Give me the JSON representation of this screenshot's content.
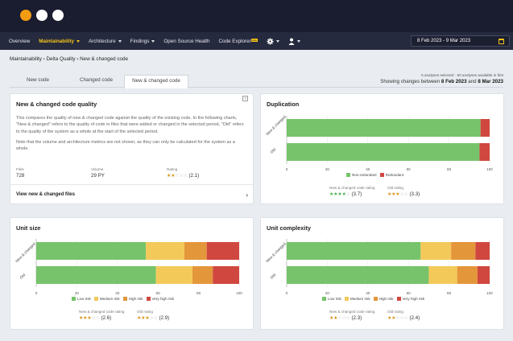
{
  "nav": {
    "items": [
      "Overview",
      "Maintainability",
      "Architecture",
      "Findings",
      "Open Source Health",
      "Code Explorer"
    ],
    "code_explorer_badge": "beta",
    "date_range": "8 Feb 2023 - 9 Mar 2023"
  },
  "breadcrumb": "Maintainability › Delta Quality › New & changed code",
  "tabs": [
    "New code",
    "Changed code",
    "New & changed code"
  ],
  "selection": {
    "line1": "5 analyses selected  ·  60 analyses available in first",
    "prefix": "Showing changes between ",
    "from": "8 Feb 2023",
    "and": " and ",
    "to": "8 Mar 2023"
  },
  "quality": {
    "title": "New & changed code quality",
    "help": "?",
    "p1": "This compares the quality of new & changed code against the quality of the existing code. In the following charts, \"New & changed\" refers to the quality of code in files that were added or changed in the selected period, \"Old\" refers to the quality of the system as a whole at the start of the selected period.",
    "p2": "Note that the volume and architecture metrics are not shown, as they can only be calculated for the system as a whole.",
    "files_label": "Files",
    "files_value": "728",
    "volume_label": "Volume",
    "volume_value": "29 PY",
    "rating_label": "Rating",
    "rating_value": "(2.1)",
    "rating_stars": 2,
    "link": "View new & changed files"
  },
  "row_labels": [
    "New & changed",
    "Old"
  ],
  "duplication": {
    "title": "Duplication",
    "legend": [
      {
        "name": "Non-redundant",
        "color": "#76c36b"
      },
      {
        "name": "Redundant",
        "color": "#d0473f"
      }
    ],
    "new_rating_label": "New & changed code rating",
    "new_rating_value": "(3.7)",
    "new_stars": 4,
    "new_star_color": "green",
    "old_rating_label": "Old rating",
    "old_rating_value": "(3.3)",
    "old_stars": 3
  },
  "unit_size": {
    "title": "Unit size",
    "legend": [
      {
        "name": "Low risk",
        "color": "#76c36b"
      },
      {
        "name": "Medium risk",
        "color": "#f3c95a"
      },
      {
        "name": "High risk",
        "color": "#e4963a"
      },
      {
        "name": "Very high risk",
        "color": "#d0473f"
      }
    ],
    "new_rating_label": "New & changed code rating",
    "new_rating_value": "(2.6)",
    "new_stars": 3,
    "old_rating_label": "Old rating",
    "old_rating_value": "(2.9)",
    "old_stars": 3
  },
  "unit_complexity": {
    "title": "Unit complexity",
    "legend": [
      {
        "name": "Low risk",
        "color": "#76c36b"
      },
      {
        "name": "Medium risk",
        "color": "#f3c95a"
      },
      {
        "name": "High risk",
        "color": "#e4963a"
      },
      {
        "name": "Very high risk",
        "color": "#d0473f"
      }
    ],
    "new_rating_label": "New & changed code rating",
    "new_rating_value": "(2.3)",
    "new_stars": 2,
    "old_rating_label": "Old rating",
    "old_rating_value": "(2.4)",
    "old_stars": 2
  },
  "chart_data": [
    {
      "type": "bar",
      "title": "Duplication",
      "orientation": "horizontal",
      "stacked": true,
      "categories": [
        "New & changed",
        "Old"
      ],
      "xlim": [
        0,
        100
      ],
      "xticks": [
        0,
        20,
        40,
        60,
        80,
        100
      ],
      "series": [
        {
          "name": "Non-redundant",
          "color": "#76c36b",
          "values": [
            95.5,
            95
          ]
        },
        {
          "name": "Redundant",
          "color": "#d0473f",
          "values": [
            4.5,
            5
          ]
        }
      ]
    },
    {
      "type": "bar",
      "title": "Unit size",
      "orientation": "horizontal",
      "stacked": true,
      "categories": [
        "New & changed",
        "Old"
      ],
      "xlim": [
        0,
        100
      ],
      "xticks": [
        0,
        20,
        40,
        60,
        80,
        100
      ],
      "series": [
        {
          "name": "Low risk",
          "color": "#76c36b",
          "values": [
            54,
            59
          ]
        },
        {
          "name": "Medium risk",
          "color": "#f3c95a",
          "values": [
            19,
            18
          ]
        },
        {
          "name": "High risk",
          "color": "#e4963a",
          "values": [
            11,
            10
          ]
        },
        {
          "name": "Very high risk",
          "color": "#d0473f",
          "values": [
            16,
            13
          ]
        }
      ]
    },
    {
      "type": "bar",
      "title": "Unit complexity",
      "orientation": "horizontal",
      "stacked": true,
      "categories": [
        "New & changed",
        "Old"
      ],
      "xlim": [
        0,
        100
      ],
      "xticks": [
        0,
        20,
        40,
        60,
        80,
        100
      ],
      "series": [
        {
          "name": "Low risk",
          "color": "#76c36b",
          "values": [
            66,
            70
          ]
        },
        {
          "name": "Medium risk",
          "color": "#f3c95a",
          "values": [
            15,
            14
          ]
        },
        {
          "name": "High risk",
          "color": "#e4963a",
          "values": [
            12,
            10
          ]
        },
        {
          "name": "Very high risk",
          "color": "#d0473f",
          "values": [
            7,
            6
          ]
        }
      ]
    }
  ]
}
